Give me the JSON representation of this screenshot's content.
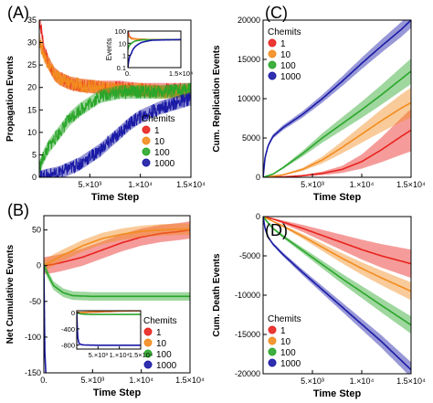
{
  "series_colors": {
    "1": "#e8231e",
    "10": "#f28c1e",
    "100": "#2aa62a",
    "1000": "#1a1aa6"
  },
  "chart_data": [
    {
      "type": "line",
      "panel": "(A)",
      "xlabel": "Time Step",
      "ylabel": "Propagation Events",
      "xlim": [
        0,
        15000
      ],
      "ylim": [
        0,
        35
      ],
      "xticks": [
        5000,
        10000,
        15000
      ],
      "xtick_labels": [
        "5.×10³",
        "1.×10⁴",
        "1.5×10⁴"
      ],
      "yticks": [
        0,
        5,
        10,
        15,
        20,
        25,
        30,
        35
      ],
      "ytick_labels": [
        "0",
        "5",
        "10",
        "15",
        "20",
        "25",
        "30",
        "35"
      ],
      "legend_title": "Chemits",
      "legend_placement": "center-right",
      "series": [
        {
          "name": "1",
          "x": [
            0,
            200,
            500,
            1000,
            1500,
            2000,
            3000,
            4000,
            6000,
            8000,
            10000,
            12000,
            15000
          ],
          "y": [
            35,
            33,
            28,
            25,
            23,
            22,
            21,
            20.5,
            20,
            20,
            19.5,
            19.5,
            19.5
          ],
          "band": 1.5
        },
        {
          "name": "10",
          "x": [
            0,
            200,
            500,
            1000,
            1500,
            2000,
            3000,
            4000,
            6000,
            8000,
            10000,
            12000,
            15000
          ],
          "y": [
            31,
            29,
            27,
            25,
            23,
            22,
            21,
            20.5,
            20,
            19.5,
            19.5,
            19,
            19
          ],
          "band": 1.5
        },
        {
          "name": "100",
          "x": [
            0,
            500,
            1000,
            2000,
            3000,
            4000,
            5000,
            6000,
            7000,
            8000,
            10000,
            12000,
            15000
          ],
          "y": [
            2,
            5,
            7,
            10,
            13,
            15,
            16.5,
            18,
            18.5,
            19,
            19,
            19,
            19.5
          ],
          "band": 1.5
        },
        {
          "name": "1000",
          "x": [
            0,
            1000,
            2000,
            3000,
            4000,
            5000,
            6000,
            7000,
            8000,
            9000,
            10000,
            12000,
            15000
          ],
          "y": [
            0,
            0.5,
            1,
            2,
            3,
            4.5,
            6,
            8,
            10,
            12,
            13.5,
            15.5,
            17.5
          ],
          "band": 1.5
        }
      ],
      "inset": {
        "ylabel": "Events",
        "xlim": [
          0,
          15000
        ],
        "yscale": "log",
        "ylim": [
          0.1,
          100
        ],
        "xticks": [
          0,
          15000
        ],
        "xtick_labels": [
          "0.",
          "1.5×10⁴"
        ],
        "yticks": [
          0.1,
          1,
          10,
          100
        ],
        "ytick_labels": [
          "0.1",
          "1",
          "10",
          "100"
        ],
        "series": [
          {
            "name": "1",
            "x": [
              0,
              300,
              1000,
              3000,
              6000,
              15000
            ],
            "y": [
              100,
              40,
              25,
              21,
              20,
              20
            ]
          },
          {
            "name": "10",
            "x": [
              0,
              300,
              1000,
              3000,
              6000,
              15000
            ],
            "y": [
              60,
              35,
              23,
              21,
              20,
              20
            ]
          },
          {
            "name": "100",
            "x": [
              0,
              300,
              1000,
              2000,
              4000,
              15000
            ],
            "y": [
              3,
              6,
              10,
              15,
              19,
              20
            ]
          },
          {
            "name": "1000",
            "x": [
              0,
              200,
              1000,
              2000,
              4000,
              7000,
              15000
            ],
            "y": [
              0.1,
              0.3,
              1.5,
              5,
              12,
              18,
              20
            ]
          }
        ]
      }
    },
    {
      "type": "line",
      "panel": "(C)",
      "xlabel": "Time Step",
      "ylabel": "Cum. Replication Events",
      "xlim": [
        0,
        15000
      ],
      "ylim": [
        0,
        20000
      ],
      "xticks": [
        5000,
        10000,
        15000
      ],
      "xtick_labels": [
        "5.×10³",
        "1.×10⁴",
        "1.5×10⁴"
      ],
      "yticks": [
        0,
        5000,
        10000,
        15000,
        20000
      ],
      "ytick_labels": [
        "0",
        "5000",
        "10000",
        "15000",
        "20000"
      ],
      "legend_title": "Chemits",
      "legend_placement": "top-left",
      "series": [
        {
          "name": "1",
          "x": [
            0,
            2000,
            4000,
            6000,
            8000,
            10000,
            12000,
            14000,
            15000
          ],
          "y": [
            0,
            50,
            200,
            500,
            1000,
            2000,
            3500,
            5200,
            6000
          ],
          "band_rel": 0.45
        },
        {
          "name": "10",
          "x": [
            0,
            2000,
            4000,
            6000,
            8000,
            10000,
            12000,
            14000,
            15000
          ],
          "y": [
            0,
            300,
            1000,
            2200,
            3800,
            5500,
            7200,
            8800,
            9500
          ],
          "band_rel": 0.2
        },
        {
          "name": "100",
          "x": [
            0,
            1000,
            2000,
            4000,
            6000,
            8000,
            10000,
            12000,
            14000,
            15000
          ],
          "y": [
            0,
            400,
            1200,
            3000,
            5000,
            6800,
            8600,
            10500,
            12500,
            13500
          ],
          "band_rel": 0.12
        },
        {
          "name": "1000",
          "x": [
            0,
            200,
            500,
            1000,
            2000,
            4000,
            6000,
            8000,
            10000,
            12000,
            14000,
            15000
          ],
          "y": [
            0,
            2500,
            4000,
            5200,
            6300,
            8000,
            10000,
            12200,
            14500,
            16700,
            18800,
            20000
          ],
          "band_rel": 0.05
        }
      ]
    },
    {
      "type": "line",
      "panel": "(B)",
      "xlabel": "Time Step",
      "ylabel": "Net Cumulative Events",
      "xlim": [
        0,
        15000
      ],
      "ylim": [
        -150,
        70
      ],
      "xticks": [
        0,
        5000,
        10000,
        15000
      ],
      "xtick_labels": [
        "0.",
        "5.×10³",
        "1.×10⁴",
        "1.5×10⁴"
      ],
      "yticks": [
        -150,
        -100,
        -50,
        0,
        50
      ],
      "ytick_labels": [
        "-150",
        "-100",
        "-50",
        "0",
        "50"
      ],
      "legend_title": "Chemits",
      "legend_placement": "bottom-right",
      "series": [
        {
          "name": "1",
          "x": [
            0,
            1000,
            2000,
            4000,
            6000,
            8000,
            10000,
            12000,
            14000,
            15000
          ],
          "y": [
            0,
            2,
            5,
            12,
            22,
            32,
            40,
            45,
            48,
            50
          ],
          "band": 12
        },
        {
          "name": "10",
          "x": [
            0,
            1000,
            2000,
            4000,
            6000,
            8000,
            10000,
            12000,
            14000,
            15000
          ],
          "y": [
            0,
            8,
            15,
            28,
            38,
            44,
            48,
            50,
            51,
            51
          ],
          "band": 8
        },
        {
          "name": "100",
          "x": [
            0,
            500,
            1000,
            2000,
            3000,
            5000,
            8000,
            10000,
            12000,
            15000
          ],
          "y": [
            0,
            -15,
            -28,
            -38,
            -42,
            -43,
            -43,
            -43,
            -43,
            -43
          ],
          "band": 6
        },
        {
          "name": "1000",
          "x": [
            0,
            50,
            100,
            200,
            400
          ],
          "y": [
            0,
            -60,
            -120,
            -150,
            -160
          ],
          "band": 0
        }
      ],
      "inset": {
        "xlim": [
          0,
          15000
        ],
        "ylim": [
          -900,
          50
        ],
        "xticks": [
          5000,
          10000,
          15000
        ],
        "xtick_labels": [
          "5.×10³",
          "1.×10⁴",
          "1.5×10⁴"
        ],
        "yticks": [
          -800,
          -400,
          0
        ],
        "ytick_labels": [
          "-800",
          "-400",
          "0"
        ],
        "series": [
          {
            "name": "1",
            "x": [
              0,
              5000,
              10000,
              15000
            ],
            "y": [
              0,
              20,
              40,
              50
            ]
          },
          {
            "name": "10",
            "x": [
              0,
              5000,
              10000,
              15000
            ],
            "y": [
              0,
              30,
              45,
              50
            ]
          },
          {
            "name": "100",
            "x": [
              0,
              1000,
              3000,
              15000
            ],
            "y": [
              0,
              -30,
              -42,
              -43
            ]
          },
          {
            "name": "1000",
            "x": [
              0,
              200,
              500,
              1000,
              2000,
              5000,
              10000,
              15000
            ],
            "y": [
              0,
              -600,
              -750,
              -790,
              -800,
              -805,
              -805,
              -805
            ]
          }
        ]
      }
    },
    {
      "type": "line",
      "panel": "(D)",
      "xlabel": "Time Step",
      "ylabel": "Cum. Death Events",
      "xlim": [
        0,
        15000
      ],
      "ylim": [
        -20000,
        0
      ],
      "xticks": [
        5000,
        10000,
        15000
      ],
      "xtick_labels": [
        "5.×10³",
        "1.×10⁴",
        "1.5×10⁴"
      ],
      "yticks": [
        -20000,
        -15000,
        -10000,
        -5000,
        0
      ],
      "ytick_labels": [
        "-20000",
        "-15000",
        "-10000",
        "-5000",
        "0"
      ],
      "legend_title": "Chemits",
      "legend_placement": "bottom-left",
      "series": [
        {
          "name": "1",
          "x": [
            0,
            1000,
            2000,
            4000,
            6000,
            8000,
            10000,
            12000,
            15000
          ],
          "y": [
            0,
            -300,
            -700,
            -1500,
            -2400,
            -3300,
            -4200,
            -5000,
            -6000
          ],
          "band_rel": 0.3
        },
        {
          "name": "10",
          "x": [
            0,
            1000,
            2000,
            4000,
            6000,
            8000,
            10000,
            12000,
            15000
          ],
          "y": [
            0,
            -600,
            -1200,
            -2500,
            -3900,
            -5300,
            -6600,
            -7800,
            -9500
          ],
          "band_rel": 0.12
        },
        {
          "name": "100",
          "x": [
            0,
            500,
            1000,
            2000,
            4000,
            6000,
            8000,
            10000,
            12000,
            15000
          ],
          "y": [
            0,
            -800,
            -1500,
            -2500,
            -4300,
            -6100,
            -7900,
            -9600,
            -11300,
            -13800
          ],
          "band_rel": 0.08
        },
        {
          "name": "1000",
          "x": [
            0,
            200,
            500,
            1000,
            2000,
            4000,
            6000,
            8000,
            10000,
            12000,
            14000,
            15000
          ],
          "y": [
            0,
            -1500,
            -2600,
            -3500,
            -4800,
            -7100,
            -9300,
            -11500,
            -13700,
            -15900,
            -18300,
            -19500
          ],
          "band_rel": 0.05
        }
      ]
    }
  ]
}
